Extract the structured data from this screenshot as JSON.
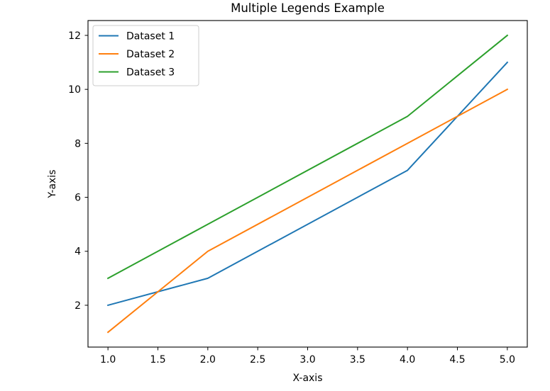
{
  "chart_data": {
    "type": "line",
    "title": "Multiple Legends Example",
    "xlabel": "X-axis",
    "ylabel": "Y-axis",
    "x": [
      1,
      2,
      4,
      5
    ],
    "xlim": [
      0.8,
      5.2
    ],
    "ylim": [
      0.45,
      12.55
    ],
    "xticks": [
      1.0,
      1.5,
      2.0,
      2.5,
      3.0,
      3.5,
      4.0,
      4.5,
      5.0
    ],
    "xtick_labels": [
      "1.0",
      "1.5",
      "2.0",
      "2.5",
      "3.0",
      "3.5",
      "4.0",
      "4.5",
      "5.0"
    ],
    "yticks": [
      2,
      4,
      6,
      8,
      10,
      12
    ],
    "ytick_labels": [
      "2",
      "4",
      "6",
      "8",
      "10",
      "12"
    ],
    "grid": false,
    "legend_position": "upper-left",
    "series": [
      {
        "name": "Dataset 1",
        "values": [
          2,
          3,
          7,
          11
        ],
        "color": "#1f77b4"
      },
      {
        "name": "Dataset 2",
        "values": [
          1,
          4,
          8,
          10
        ],
        "color": "#ff7f0e"
      },
      {
        "name": "Dataset 3",
        "values": [
          3,
          5,
          9,
          12
        ],
        "color": "#2ca02c"
      }
    ]
  }
}
